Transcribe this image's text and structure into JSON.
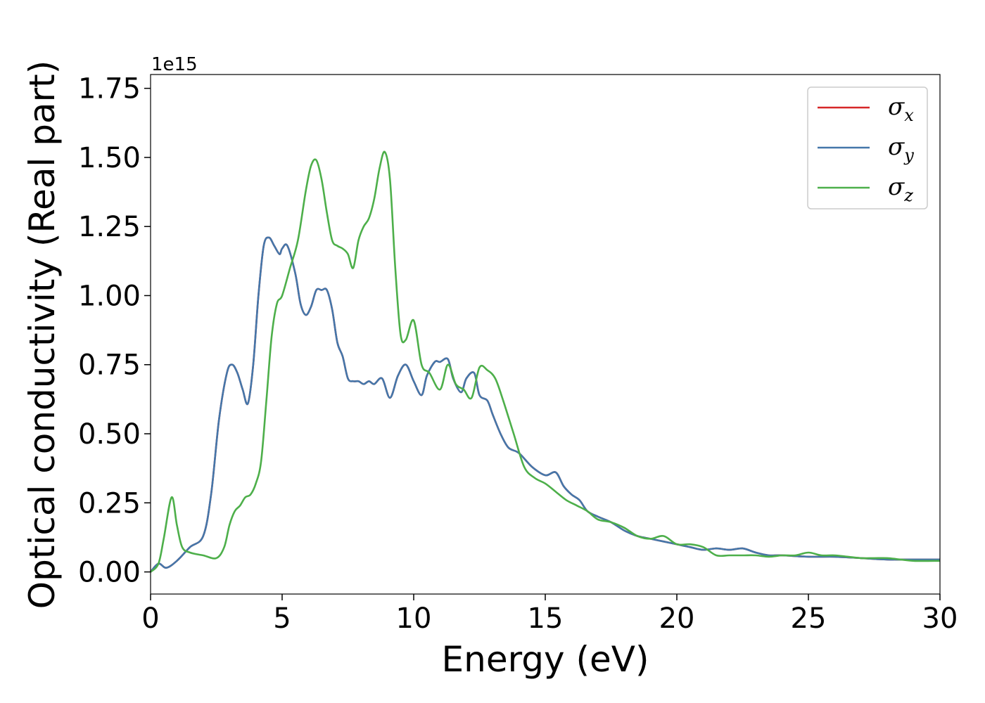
{
  "chart_data": {
    "type": "line",
    "xlabel": "Energy (eV)",
    "ylabel": "Optical conductivity (Real part)",
    "y_offset_label": "1e15",
    "y_scale": 1000000000000000.0,
    "xlim": [
      0,
      30
    ],
    "ylim": [
      -0.08,
      1.8
    ],
    "xticks": [
      0,
      5,
      10,
      15,
      20,
      25,
      30
    ],
    "xtick_labels": [
      "0",
      "5",
      "10",
      "15",
      "20",
      "25",
      "30"
    ],
    "yticks": [
      0.0,
      0.25,
      0.5,
      0.75,
      1.0,
      1.25,
      1.5,
      1.75
    ],
    "ytick_labels": [
      "0.00",
      "0.25",
      "0.50",
      "0.75",
      "1.00",
      "1.25",
      "1.50",
      "1.75"
    ],
    "grid": false,
    "legend_position": "top-right",
    "series": [
      {
        "name": "σ",
        "subscript": "x",
        "color": "#d62728",
        "x": [
          0,
          0.3,
          0.6,
          1.0,
          1.5,
          2.0,
          2.3,
          2.6,
          2.9,
          3.1,
          3.3,
          3.5,
          3.7,
          3.9,
          4.1,
          4.3,
          4.5,
          4.7,
          4.9,
          5.0,
          5.2,
          5.5,
          5.7,
          5.9,
          6.1,
          6.3,
          6.5,
          6.7,
          6.9,
          7.1,
          7.3,
          7.5,
          7.7,
          7.9,
          8.1,
          8.3,
          8.5,
          8.8,
          9.1,
          9.4,
          9.7,
          10.0,
          10.3,
          10.5,
          10.8,
          11.0,
          11.3,
          11.5,
          11.8,
          12.0,
          12.3,
          12.5,
          12.8,
          13.0,
          13.3,
          13.6,
          14.0,
          14.5,
          15.0,
          15.4,
          15.7,
          16.0,
          16.3,
          16.6,
          17.0,
          17.5,
          18.0,
          18.5,
          19.0,
          19.5,
          20.0,
          20.5,
          21.0,
          21.5,
          22.0,
          22.5,
          23.0,
          23.5,
          24.0,
          25.0,
          26.0,
          27.0,
          28.0,
          29.0,
          30.0
        ],
        "values": [
          0.0,
          0.03,
          0.015,
          0.04,
          0.09,
          0.13,
          0.28,
          0.55,
          0.72,
          0.75,
          0.72,
          0.66,
          0.61,
          0.75,
          1.0,
          1.18,
          1.21,
          1.18,
          1.15,
          1.17,
          1.18,
          1.08,
          0.97,
          0.93,
          0.96,
          1.02,
          1.02,
          1.02,
          0.95,
          0.83,
          0.78,
          0.7,
          0.69,
          0.69,
          0.68,
          0.69,
          0.68,
          0.7,
          0.63,
          0.71,
          0.75,
          0.69,
          0.64,
          0.71,
          0.76,
          0.76,
          0.77,
          0.7,
          0.65,
          0.7,
          0.72,
          0.64,
          0.62,
          0.57,
          0.5,
          0.45,
          0.43,
          0.38,
          0.35,
          0.36,
          0.31,
          0.28,
          0.26,
          0.22,
          0.2,
          0.18,
          0.15,
          0.13,
          0.12,
          0.11,
          0.1,
          0.09,
          0.08,
          0.085,
          0.08,
          0.085,
          0.07,
          0.06,
          0.06,
          0.055,
          0.055,
          0.05,
          0.045,
          0.045,
          0.045
        ]
      },
      {
        "name": "σ",
        "subscript": "y",
        "color": "#4477aa",
        "x": [
          0,
          0.3,
          0.6,
          1.0,
          1.5,
          2.0,
          2.3,
          2.6,
          2.9,
          3.1,
          3.3,
          3.5,
          3.7,
          3.9,
          4.1,
          4.3,
          4.5,
          4.7,
          4.9,
          5.0,
          5.2,
          5.5,
          5.7,
          5.9,
          6.1,
          6.3,
          6.5,
          6.7,
          6.9,
          7.1,
          7.3,
          7.5,
          7.7,
          7.9,
          8.1,
          8.3,
          8.5,
          8.8,
          9.1,
          9.4,
          9.7,
          10.0,
          10.3,
          10.5,
          10.8,
          11.0,
          11.3,
          11.5,
          11.8,
          12.0,
          12.3,
          12.5,
          12.8,
          13.0,
          13.3,
          13.6,
          14.0,
          14.5,
          15.0,
          15.4,
          15.7,
          16.0,
          16.3,
          16.6,
          17.0,
          17.5,
          18.0,
          18.5,
          19.0,
          19.5,
          20.0,
          20.5,
          21.0,
          21.5,
          22.0,
          22.5,
          23.0,
          23.5,
          24.0,
          25.0,
          26.0,
          27.0,
          28.0,
          29.0,
          30.0
        ],
        "values": [
          0.0,
          0.03,
          0.015,
          0.04,
          0.09,
          0.13,
          0.28,
          0.55,
          0.72,
          0.75,
          0.72,
          0.66,
          0.61,
          0.75,
          1.0,
          1.18,
          1.21,
          1.18,
          1.15,
          1.17,
          1.18,
          1.08,
          0.97,
          0.93,
          0.96,
          1.02,
          1.02,
          1.02,
          0.95,
          0.83,
          0.78,
          0.7,
          0.69,
          0.69,
          0.68,
          0.69,
          0.68,
          0.7,
          0.63,
          0.71,
          0.75,
          0.69,
          0.64,
          0.71,
          0.76,
          0.76,
          0.77,
          0.7,
          0.65,
          0.7,
          0.72,
          0.64,
          0.62,
          0.57,
          0.5,
          0.45,
          0.43,
          0.38,
          0.35,
          0.36,
          0.31,
          0.28,
          0.26,
          0.22,
          0.2,
          0.18,
          0.15,
          0.13,
          0.12,
          0.11,
          0.1,
          0.09,
          0.08,
          0.085,
          0.08,
          0.085,
          0.07,
          0.06,
          0.06,
          0.055,
          0.055,
          0.05,
          0.045,
          0.045,
          0.045
        ]
      },
      {
        "name": "σ",
        "subscript": "z",
        "color": "#4daf4a",
        "x": [
          0,
          0.3,
          0.5,
          0.8,
          1.0,
          1.2,
          1.5,
          2.0,
          2.5,
          2.8,
          3.0,
          3.2,
          3.4,
          3.6,
          3.8,
          4.0,
          4.2,
          4.4,
          4.6,
          4.8,
          5.0,
          5.3,
          5.6,
          5.9,
          6.1,
          6.3,
          6.5,
          6.7,
          6.9,
          7.1,
          7.3,
          7.5,
          7.7,
          7.9,
          8.1,
          8.3,
          8.5,
          8.7,
          8.9,
          9.1,
          9.3,
          9.5,
          9.7,
          10.0,
          10.3,
          10.6,
          11.0,
          11.3,
          11.6,
          11.9,
          12.2,
          12.5,
          12.8,
          13.1,
          13.4,
          13.8,
          14.2,
          14.6,
          15.0,
          15.4,
          15.8,
          16.2,
          16.6,
          17.0,
          17.5,
          18.0,
          18.5,
          19.0,
          19.5,
          20.0,
          20.5,
          21.0,
          21.5,
          22.0,
          22.5,
          23.0,
          23.5,
          24.0,
          24.5,
          25.0,
          25.5,
          26.0,
          26.5,
          27.0,
          27.5,
          28.0,
          28.5,
          29.0,
          30.0
        ],
        "values": [
          0.0,
          0.03,
          0.12,
          0.27,
          0.17,
          0.09,
          0.07,
          0.06,
          0.05,
          0.09,
          0.17,
          0.22,
          0.24,
          0.27,
          0.28,
          0.32,
          0.4,
          0.62,
          0.85,
          0.97,
          1.0,
          1.1,
          1.2,
          1.38,
          1.47,
          1.49,
          1.42,
          1.3,
          1.2,
          1.18,
          1.17,
          1.15,
          1.1,
          1.2,
          1.25,
          1.28,
          1.35,
          1.46,
          1.52,
          1.42,
          1.1,
          0.86,
          0.84,
          0.91,
          0.75,
          0.72,
          0.66,
          0.75,
          0.68,
          0.66,
          0.63,
          0.74,
          0.73,
          0.7,
          0.62,
          0.5,
          0.38,
          0.34,
          0.32,
          0.29,
          0.26,
          0.24,
          0.22,
          0.19,
          0.18,
          0.16,
          0.13,
          0.12,
          0.13,
          0.1,
          0.1,
          0.09,
          0.06,
          0.06,
          0.06,
          0.06,
          0.055,
          0.06,
          0.06,
          0.07,
          0.06,
          0.06,
          0.055,
          0.05,
          0.05,
          0.05,
          0.045,
          0.04,
          0.04
        ]
      }
    ]
  }
}
